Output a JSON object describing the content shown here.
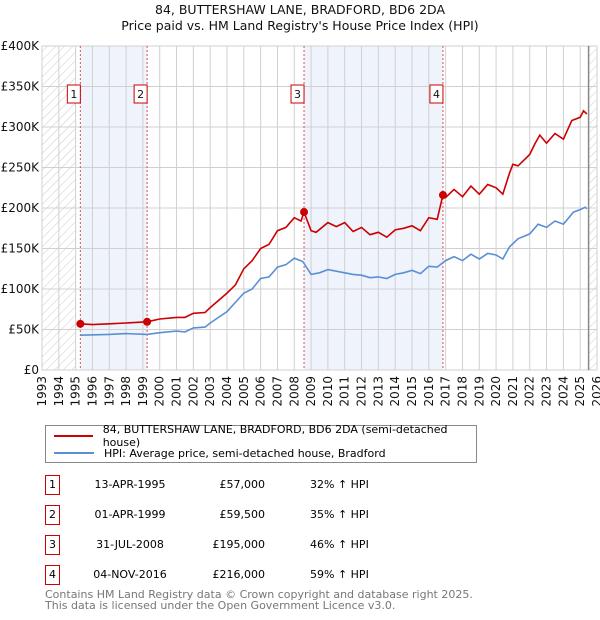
{
  "chart_data": {
    "type": "line",
    "title": "84, BUTTERSHAW LANE, BRADFORD, BD6 2DA",
    "subtitle": "Price paid vs. HM Land Registry's House Price Index (HPI)",
    "xlim": [
      1993,
      2026
    ],
    "ylim": [
      0,
      400000
    ],
    "x_ticks": [
      1993,
      1994,
      1995,
      1996,
      1997,
      1998,
      1999,
      2000,
      2001,
      2002,
      2003,
      2004,
      2005,
      2006,
      2007,
      2008,
      2009,
      2010,
      2011,
      2012,
      2013,
      2014,
      2015,
      2016,
      2017,
      2018,
      2019,
      2020,
      2021,
      2022,
      2023,
      2024,
      2025,
      2026
    ],
    "y_ticks": [
      0,
      50000,
      100000,
      150000,
      200000,
      250000,
      300000,
      350000,
      400000
    ],
    "y_tick_labels": [
      "£0",
      "£50K",
      "£100K",
      "£150K",
      "£200K",
      "£250K",
      "£300K",
      "£350K",
      "£400K"
    ],
    "grid": true,
    "data_start": 1995.0,
    "data_end": 2025.5,
    "colors": {
      "property": "#cc0000",
      "hpi": "#5b8fd4",
      "band": "#eef3fc"
    },
    "series": [
      {
        "name": "84, BUTTERSHAW LANE, BRADFORD, BD6 2DA (semi-detached house)",
        "color": "#cc0000",
        "x": [
          1995.28,
          1996,
          1997,
          1998,
          1999.25,
          2000,
          2001,
          2001.5,
          2002,
          2002.7,
          2003,
          2004,
          2004.5,
          2005,
          2005.5,
          2006,
          2006.5,
          2007,
          2007.5,
          2008,
          2008.4,
          2008.58,
          2009,
          2009.3,
          2010,
          2010.5,
          2011,
          2011.5,
          2012,
          2012.5,
          2013,
          2013.5,
          2014,
          2014.5,
          2015,
          2015.5,
          2016,
          2016.5,
          2016.84,
          2017,
          2017.5,
          2018,
          2018.5,
          2019,
          2019.5,
          2020,
          2020.4,
          2020.8,
          2021,
          2021.3,
          2021.7,
          2022,
          2022.3,
          2022.6,
          2023,
          2023.5,
          2024,
          2024.5,
          2025,
          2025.2,
          2025.4
        ],
        "y": [
          57000,
          56000,
          57000,
          58000,
          59500,
          63000,
          65000,
          65000,
          70000,
          71000,
          77000,
          95000,
          105000,
          125000,
          135000,
          150000,
          155000,
          172000,
          176000,
          188000,
          184000,
          195000,
          172000,
          170000,
          182000,
          177000,
          182000,
          171000,
          176000,
          167000,
          170000,
          164000,
          173000,
          175000,
          178000,
          172000,
          188000,
          186000,
          216000,
          213000,
          223000,
          214000,
          227000,
          217000,
          229000,
          225000,
          217000,
          243000,
          254000,
          252000,
          260000,
          266000,
          279000,
          290000,
          280000,
          292000,
          285000,
          308000,
          312000,
          320000,
          316000
        ]
      },
      {
        "name": "HPI: Average price, semi-detached house, Bradford",
        "color": "#5b8fd4",
        "x": [
          1995.28,
          1997,
          1998,
          1999.25,
          2000,
          2001,
          2001.5,
          2002,
          2002.7,
          2003,
          2004,
          2005,
          2005.5,
          2006,
          2006.5,
          2007,
          2007.5,
          2008,
          2008.5,
          2009,
          2009.5,
          2010,
          2011,
          2011.5,
          2012,
          2012.5,
          2013,
          2013.5,
          2014,
          2014.5,
          2015,
          2015.5,
          2016,
          2016.5,
          2017,
          2017.5,
          2018,
          2018.5,
          2019,
          2019.5,
          2020,
          2020.4,
          2020.8,
          2021.3,
          2022,
          2022.5,
          2023,
          2023.5,
          2024,
          2024.6,
          2025,
          2025.3,
          2025.4
        ],
        "y": [
          43000,
          44000,
          45000,
          44000,
          46000,
          48000,
          47000,
          52000,
          53000,
          58000,
          72000,
          95000,
          100000,
          113000,
          115000,
          127000,
          130000,
          138000,
          134000,
          118000,
          120000,
          124000,
          120000,
          118000,
          117000,
          114000,
          115000,
          113000,
          118000,
          120000,
          123000,
          119000,
          128000,
          127000,
          135000,
          140000,
          135000,
          143000,
          137000,
          144000,
          142000,
          137000,
          152000,
          162000,
          168000,
          180000,
          176000,
          184000,
          180000,
          195000,
          198000,
          201000,
          199000
        ]
      }
    ],
    "sales": [
      {
        "n": "1",
        "x": 1995.28,
        "price": 57000
      },
      {
        "n": "2",
        "x": 1999.25,
        "price": 59500
      },
      {
        "n": "3",
        "x": 2008.58,
        "price": 195000
      },
      {
        "n": "4",
        "x": 2016.84,
        "price": 216000
      }
    ]
  },
  "title": {
    "line1": "84, BUTTERSHAW LANE, BRADFORD, BD6 2DA",
    "line2": "Price paid vs. HM Land Registry's House Price Index (HPI)"
  },
  "legend": {
    "property": "84, BUTTERSHAW LANE, BRADFORD, BD6 2DA (semi-detached house)",
    "hpi": "HPI: Average price, semi-detached house, Bradford"
  },
  "table": [
    {
      "n": "1",
      "date": "13-APR-1995",
      "price": "£57,000",
      "hpi": "32% ↑ HPI"
    },
    {
      "n": "2",
      "date": "01-APR-1999",
      "price": "£59,500",
      "hpi": "35% ↑ HPI"
    },
    {
      "n": "3",
      "date": "31-JUL-2008",
      "price": "£195,000",
      "hpi": "46% ↑ HPI"
    },
    {
      "n": "4",
      "date": "04-NOV-2016",
      "price": "£216,000",
      "hpi": "59% ↑ HPI"
    }
  ],
  "footer": {
    "line1": "Contains HM Land Registry data © Crown copyright and database right 2025.",
    "line2": "This data is licensed under the Open Government Licence v3.0."
  }
}
